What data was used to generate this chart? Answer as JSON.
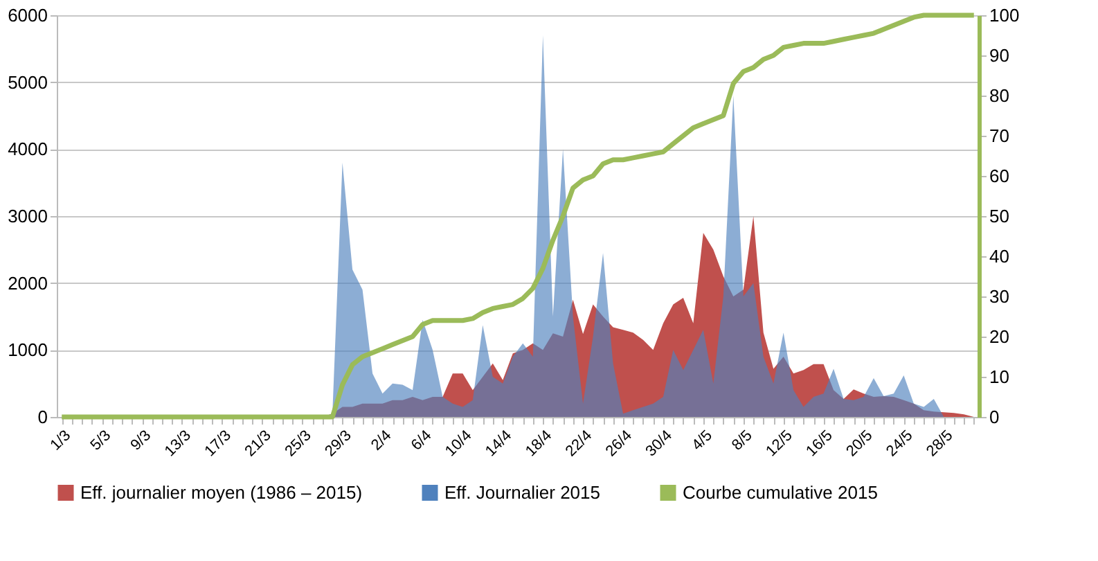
{
  "chart_data": {
    "type": "area",
    "categories": [
      "1/3",
      null,
      null,
      null,
      "5/3",
      null,
      null,
      null,
      "9/3",
      null,
      null,
      null,
      "13/3",
      null,
      null,
      null,
      "17/3",
      null,
      null,
      null,
      "21/3",
      null,
      null,
      null,
      "25/3",
      null,
      null,
      null,
      "29/3",
      null,
      null,
      null,
      "2/4",
      null,
      null,
      null,
      "6/4",
      null,
      null,
      null,
      "10/4",
      null,
      null,
      null,
      "14/4",
      null,
      null,
      null,
      "18/4",
      null,
      null,
      null,
      "22/4",
      null,
      null,
      null,
      "26/4",
      null,
      null,
      null,
      "30/4",
      null,
      null,
      null,
      "4/5",
      null,
      null,
      null,
      "8/5",
      null,
      null,
      null,
      "12/5",
      null,
      null,
      null,
      "16/5",
      null,
      null,
      null,
      "20/5",
      null,
      null,
      null,
      "24/5",
      null,
      null,
      null,
      "28/5",
      null,
      null,
      null
    ],
    "series": [
      {
        "name": "Eff. journalier moyen (1986 – 2015)",
        "color": "#c0504d",
        "values": [
          0,
          0,
          0,
          0,
          0,
          0,
          0,
          0,
          0,
          0,
          0,
          0,
          0,
          0,
          0,
          0,
          0,
          0,
          0,
          0,
          0,
          0,
          0,
          0,
          0,
          0,
          0,
          50,
          150,
          150,
          200,
          200,
          200,
          250,
          250,
          300,
          250,
          300,
          300,
          650,
          650,
          400,
          600,
          800,
          550,
          950,
          1000,
          1100,
          1000,
          1250,
          1200,
          1750,
          1240,
          1680,
          1500,
          1340,
          1300,
          1260,
          1150,
          1000,
          1400,
          1680,
          1780,
          1400,
          2750,
          2500,
          2100,
          1800,
          1900,
          3000,
          1260,
          720,
          900,
          650,
          700,
          790,
          790,
          400,
          270,
          410,
          350,
          300,
          310,
          300,
          250,
          200,
          100,
          80,
          70,
          60,
          40,
          0
        ]
      },
      {
        "name": "Eff. Journalier 2015",
        "color": "#4f81bd",
        "values": [
          0,
          0,
          0,
          0,
          0,
          0,
          0,
          0,
          0,
          0,
          0,
          0,
          0,
          0,
          0,
          0,
          0,
          0,
          0,
          0,
          0,
          0,
          0,
          0,
          0,
          0,
          0,
          50,
          3800,
          2200,
          1900,
          650,
          350,
          500,
          480,
          400,
          1450,
          1000,
          300,
          200,
          150,
          250,
          1370,
          600,
          500,
          900,
          1100,
          900,
          5700,
          1500,
          4000,
          1500,
          200,
          1200,
          2450,
          800,
          50,
          100,
          150,
          200,
          300,
          1000,
          700,
          1000,
          1300,
          500,
          1800,
          4800,
          1800,
          2000,
          900,
          500,
          1260,
          400,
          150,
          300,
          350,
          720,
          270,
          250,
          300,
          580,
          310,
          350,
          620,
          200,
          150,
          270,
          0,
          0,
          0,
          0
        ]
      },
      {
        "name": "Courbe cumulative 2015",
        "type": "line",
        "axis": "y2",
        "color": "#9bbb59",
        "values": [
          0,
          0,
          0,
          0,
          0,
          0,
          0,
          0,
          0,
          0,
          0,
          0,
          0,
          0,
          0,
          0,
          0,
          0,
          0,
          0,
          0,
          0,
          0,
          0,
          0,
          0,
          0,
          0,
          8,
          13,
          15,
          16,
          17,
          18,
          19,
          20,
          23,
          24,
          24,
          24,
          24,
          24.5,
          26,
          27,
          27.5,
          28,
          29.5,
          32,
          37,
          44,
          50,
          57,
          59,
          60,
          63,
          64,
          64,
          64.5,
          65,
          65.5,
          66,
          68,
          70,
          72,
          73,
          74,
          75,
          83,
          86,
          87,
          89,
          90,
          92,
          92.5,
          93,
          93,
          93,
          93.5,
          94,
          94.5,
          95,
          95.5,
          96.5,
          97.5,
          98.5,
          99.5,
          100,
          100,
          100,
          100,
          100,
          100
        ]
      }
    ],
    "ylim": [
      0,
      6000
    ],
    "yticks": [
      0,
      1000,
      2000,
      3000,
      4000,
      5000,
      6000
    ],
    "y2lim": [
      0,
      100
    ],
    "y2ticks": [
      0,
      10,
      20,
      30,
      40,
      50,
      60,
      70,
      80,
      90,
      100
    ],
    "grid": "y",
    "legend": "bottom"
  }
}
